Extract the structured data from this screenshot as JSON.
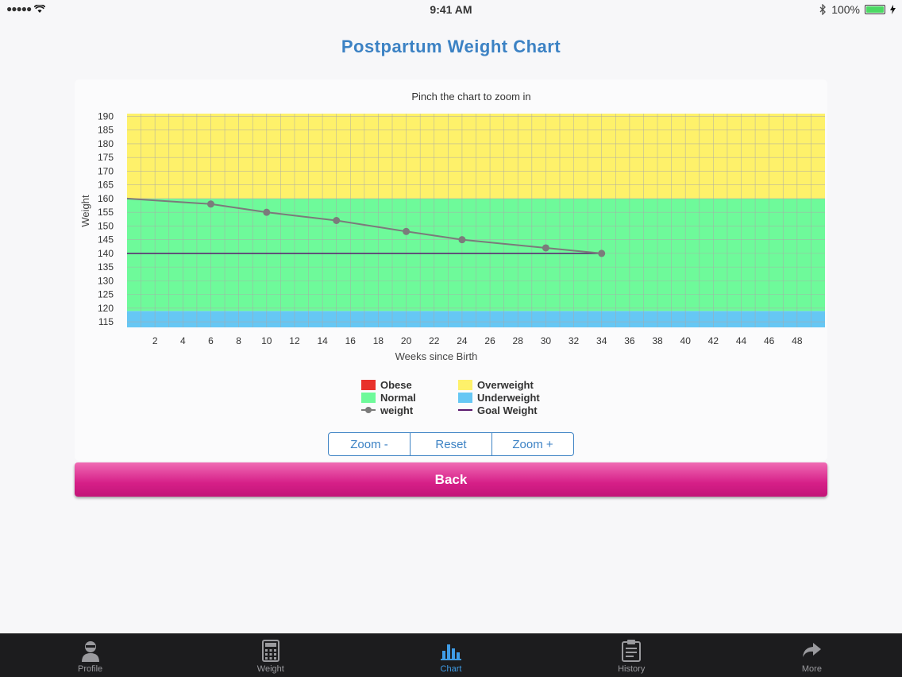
{
  "status": {
    "signal": "●●●●●",
    "time": "9:41 AM",
    "battery": "100%"
  },
  "title": "Postpartum Weight Chart",
  "chart_data": {
    "type": "line",
    "title": "Pinch the chart to zoom in",
    "xlabel": "Weeks since Birth",
    "ylabel": "Weight",
    "xlim": [
      0,
      50
    ],
    "ylim": [
      113,
      191
    ],
    "x_ticks": [
      2,
      4,
      6,
      8,
      10,
      12,
      14,
      16,
      18,
      20,
      22,
      24,
      26,
      28,
      30,
      32,
      34,
      36,
      38,
      40,
      42,
      44,
      46,
      48
    ],
    "y_ticks": [
      115,
      120,
      125,
      130,
      135,
      140,
      145,
      150,
      155,
      160,
      165,
      170,
      175,
      180,
      185,
      190
    ],
    "bands": [
      {
        "name": "Underweight",
        "from": 113,
        "to": 119,
        "color": "#66c7f4"
      },
      {
        "name": "Normal",
        "from": 119,
        "to": 160,
        "color": "#6efa9a"
      },
      {
        "name": "Overweight",
        "from": 160,
        "to": 191,
        "color": "#fef16a"
      }
    ],
    "series": [
      {
        "name": "weight",
        "color": "#7b7b7b",
        "x": [
          0,
          6,
          10,
          15,
          20,
          24,
          30,
          34
        ],
        "y": [
          160,
          158,
          155,
          152,
          148,
          145,
          142,
          140
        ]
      },
      {
        "name": "Goal Weight",
        "color": "#5a1a6e",
        "x": [
          0,
          34
        ],
        "y": [
          140,
          140
        ]
      }
    ],
    "grid": true,
    "legend": "bottom"
  },
  "legend": [
    {
      "label": "Obese",
      "color": "#e8312b",
      "kind": "box"
    },
    {
      "label": "Overweight",
      "color": "#fef16a",
      "kind": "box"
    },
    {
      "label": "Normal",
      "color": "#6efa9a",
      "kind": "box"
    },
    {
      "label": "Underweight",
      "color": "#66c7f4",
      "kind": "box"
    },
    {
      "label": "weight",
      "color": "#7b7b7b",
      "kind": "line-dot"
    },
    {
      "label": "Goal Weight",
      "color": "#5a1a6e",
      "kind": "line"
    }
  ],
  "zoom": {
    "minus": "Zoom -",
    "reset": "Reset",
    "plus": "Zoom +"
  },
  "back_label": "Back",
  "tabs": [
    {
      "label": "Profile",
      "icon": "profile-icon"
    },
    {
      "label": "Weight",
      "icon": "calculator-icon"
    },
    {
      "label": "Chart",
      "icon": "bar-chart-icon",
      "active": true
    },
    {
      "label": "History",
      "icon": "clipboard-icon"
    },
    {
      "label": "More",
      "icon": "share-arrow-icon"
    }
  ]
}
